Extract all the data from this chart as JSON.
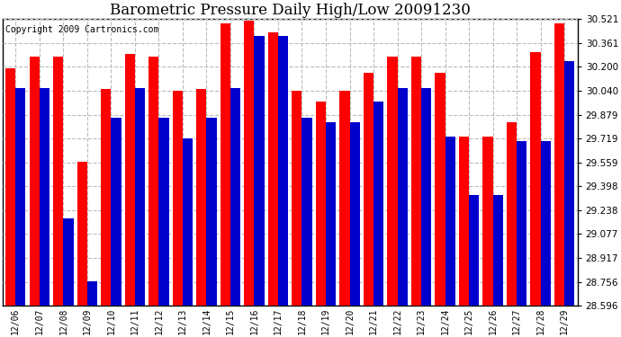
{
  "title": "Barometric Pressure Daily High/Low 20091230",
  "copyright": "Copyright 2009 Cartronics.com",
  "dates": [
    "12/06",
    "12/07",
    "12/08",
    "12/09",
    "12/10",
    "12/11",
    "12/12",
    "12/13",
    "12/14",
    "12/15",
    "12/16",
    "12/17",
    "12/18",
    "12/19",
    "12/20",
    "12/21",
    "12/22",
    "12/23",
    "12/24",
    "12/25",
    "12/26",
    "12/27",
    "12/28",
    "12/29"
  ],
  "highs": [
    30.19,
    30.27,
    30.27,
    29.56,
    30.05,
    30.29,
    30.27,
    30.04,
    30.05,
    30.49,
    30.51,
    30.43,
    30.04,
    29.97,
    30.04,
    30.16,
    30.27,
    30.27,
    30.16,
    29.73,
    29.73,
    29.83,
    30.3,
    30.49
  ],
  "lows": [
    30.06,
    30.06,
    29.18,
    28.76,
    29.86,
    30.06,
    29.86,
    29.72,
    29.86,
    30.06,
    30.41,
    30.41,
    29.86,
    29.83,
    29.83,
    29.97,
    30.06,
    30.06,
    29.73,
    29.34,
    29.34,
    29.7,
    29.7,
    30.24
  ],
  "ymin": 28.596,
  "ymax": 30.521,
  "yticks": [
    28.596,
    28.756,
    28.917,
    29.077,
    29.238,
    29.398,
    29.559,
    29.719,
    29.879,
    30.04,
    30.2,
    30.361,
    30.521
  ],
  "high_color": "#ff0000",
  "low_color": "#0000cc",
  "background_color": "#ffffff",
  "grid_color": "#bbbbbb",
  "title_fontsize": 12,
  "copyright_fontsize": 7
}
